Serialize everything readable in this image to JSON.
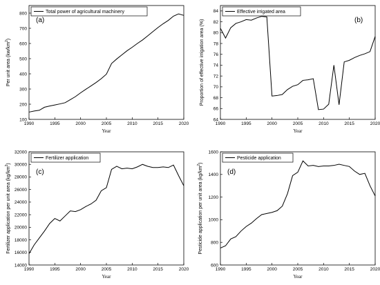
{
  "chart_data": [
    {
      "type": "line",
      "letter": "(a)",
      "legend": "Total power of agricultural machinery",
      "ylabel_main": "Per unit area (kw/km",
      "ylabel_sup": "2",
      "ylabel_tail": ")",
      "xlabel": "Year",
      "xlim": [
        1990,
        2020
      ],
      "ylim": [
        100,
        850
      ],
      "xticks": [
        1990,
        1995,
        2000,
        2005,
        2010,
        2015,
        2020
      ],
      "yticks": [
        100,
        200,
        300,
        400,
        500,
        600,
        700,
        800
      ],
      "x": [
        1990,
        1991,
        1992,
        1993,
        1994,
        1995,
        1996,
        1997,
        1998,
        1999,
        2000,
        2001,
        2002,
        2003,
        2004,
        2005,
        2006,
        2007,
        2008,
        2009,
        2010,
        2011,
        2012,
        2013,
        2014,
        2015,
        2016,
        2017,
        2018,
        2019,
        2020
      ],
      "y": [
        148,
        155,
        160,
        180,
        188,
        195,
        202,
        210,
        230,
        250,
        275,
        298,
        320,
        343,
        368,
        398,
        468,
        498,
        525,
        552,
        575,
        600,
        623,
        650,
        678,
        705,
        730,
        752,
        780,
        795,
        785
      ]
    },
    {
      "type": "line",
      "letter": "(b)",
      "legend": "Effective irrigated area",
      "ylabel_main": "Proportion of effective irrigation area (%)",
      "ylabel_sup": "",
      "ylabel_tail": "",
      "xlabel": "Year",
      "xlim": [
        1990,
        2020
      ],
      "ylim": [
        64,
        85
      ],
      "xticks": [
        1990,
        1995,
        2000,
        2005,
        2010,
        2015,
        2020
      ],
      "yticks": [
        64,
        66,
        68,
        70,
        72,
        74,
        76,
        78,
        80,
        82,
        84
      ],
      "x": [
        1990,
        1991,
        1992,
        1993,
        1994,
        1995,
        1996,
        1997,
        1998,
        1999,
        2000,
        2001,
        2002,
        2003,
        2004,
        2005,
        2006,
        2007,
        2008,
        2009,
        2010,
        2011,
        2012,
        2013,
        2014,
        2015,
        2016,
        2017,
        2018,
        2019,
        2020
      ],
      "y": [
        80.8,
        79.0,
        80.9,
        81.7,
        82.0,
        82.4,
        82.3,
        82.7,
        83.0,
        82.9,
        68.3,
        68.4,
        68.6,
        69.5,
        70.1,
        70.4,
        71.2,
        71.3,
        71.5,
        65.8,
        65.9,
        66.8,
        74.0,
        66.7,
        74.6,
        74.9,
        75.4,
        75.8,
        76.1,
        76.5,
        79.3
      ]
    },
    {
      "type": "line",
      "letter": "(c)",
      "legend": "Fertilizer application",
      "ylabel_main": "Fertilizer application per unit area (kg/km",
      "ylabel_sup": "2",
      "ylabel_tail": ")",
      "xlabel": "Year",
      "xlim": [
        1990,
        2020
      ],
      "ylim": [
        14000,
        32000
      ],
      "xticks": [
        1990,
        1995,
        2000,
        2005,
        2010,
        2015,
        2020
      ],
      "yticks": [
        14000,
        16000,
        18000,
        20000,
        22000,
        24000,
        26000,
        28000,
        30000,
        32000
      ],
      "x": [
        1990,
        1991,
        1992,
        1993,
        1994,
        1995,
        1996,
        1997,
        1998,
        1999,
        2000,
        2001,
        2002,
        2003,
        2004,
        2005,
        2006,
        2007,
        2008,
        2009,
        2010,
        2011,
        2012,
        2013,
        2014,
        2015,
        2016,
        2017,
        2018,
        2019,
        2020
      ],
      "y": [
        15800,
        17200,
        18300,
        19400,
        20600,
        21400,
        21000,
        21800,
        22600,
        22500,
        22800,
        23300,
        23700,
        24300,
        25800,
        26300,
        29200,
        29700,
        29300,
        29400,
        29300,
        29600,
        30000,
        29700,
        29500,
        29500,
        29600,
        29500,
        29900,
        28200,
        26600
      ]
    },
    {
      "type": "line",
      "letter": "(d)",
      "legend": "Pesticide application",
      "ylabel_main": "Pesticide application per unit area (kg/km",
      "ylabel_sup": "2",
      "ylabel_tail": ")",
      "xlabel": "Year",
      "xlim": [
        1990,
        2020
      ],
      "ylim": [
        600,
        1600
      ],
      "xticks": [
        1990,
        1995,
        2000,
        2005,
        2010,
        2015,
        2020
      ],
      "yticks": [
        600,
        800,
        1000,
        1200,
        1400,
        1600
      ],
      "x": [
        1990,
        1991,
        1992,
        1993,
        1994,
        1995,
        1996,
        1997,
        1998,
        1999,
        2000,
        2001,
        2002,
        2003,
        2004,
        2005,
        2006,
        2007,
        2008,
        2009,
        2010,
        2011,
        2012,
        2013,
        2014,
        2015,
        2016,
        2017,
        2018,
        2019,
        2020
      ],
      "y": [
        750,
        770,
        830,
        850,
        900,
        940,
        970,
        1010,
        1045,
        1055,
        1065,
        1080,
        1120,
        1230,
        1390,
        1420,
        1520,
        1475,
        1480,
        1470,
        1475,
        1475,
        1480,
        1490,
        1480,
        1470,
        1430,
        1400,
        1410,
        1300,
        1210
      ]
    }
  ]
}
